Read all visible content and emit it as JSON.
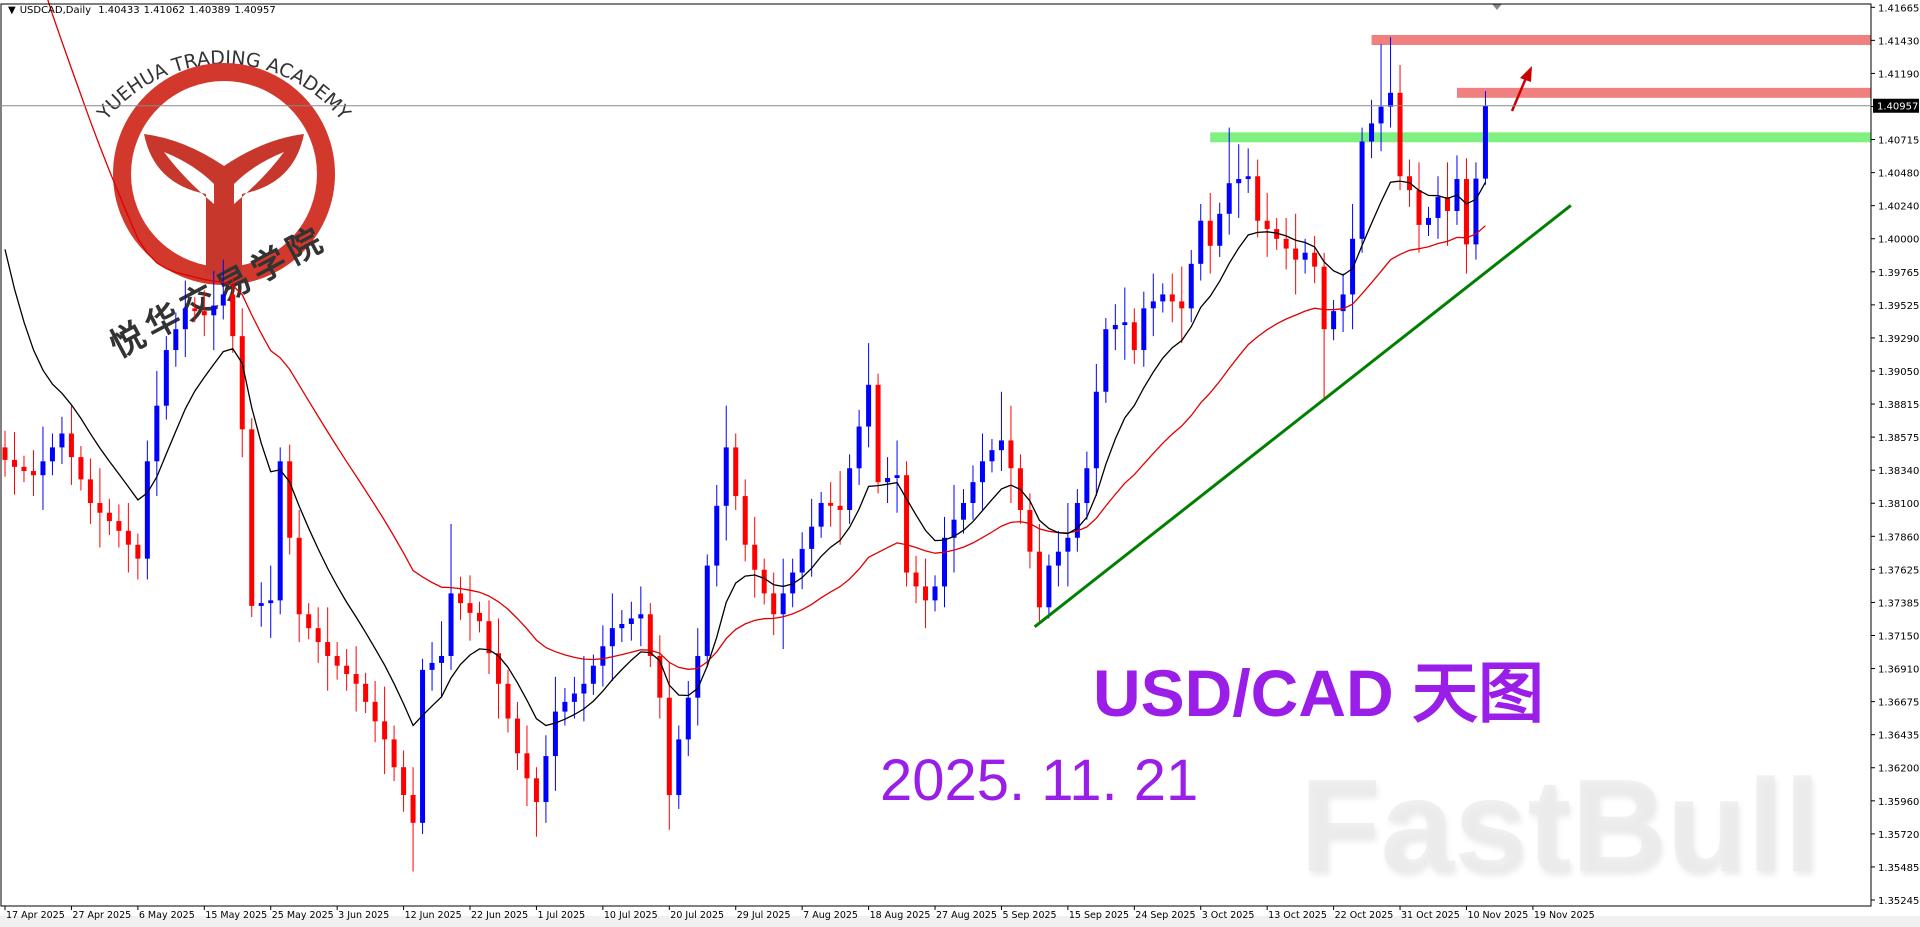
{
  "header": {
    "symbol": "USDCAD,Daily",
    "open": "1.40433",
    "high": "1.41062",
    "low": "1.40389",
    "close": "1.40957"
  },
  "overlay": {
    "title": "USD/CAD 天图",
    "date": "2025. 11. 21",
    "watermark": "FastBull",
    "logo_text": "YUEHUA TRADING ACADEMY",
    "logo_cn": "悦华交易学院",
    "title_color": "#9a1ee8"
  },
  "chart_data": {
    "type": "candlestick",
    "symbol": "USDCAD",
    "timeframe": "Daily",
    "ylim": [
      1.35245,
      1.41665
    ],
    "y_ticks": [
      "1.41665",
      "1.41430",
      "1.41190",
      "1.40957",
      "1.40715",
      "1.40480",
      "1.40240",
      "1.40000",
      "1.39765",
      "1.39525",
      "1.39290",
      "1.39050",
      "1.38815",
      "1.38575",
      "1.38340",
      "1.38100",
      "1.37860",
      "1.37625",
      "1.37385",
      "1.37150",
      "1.36910",
      "1.36675",
      "1.36435",
      "1.36200",
      "1.35960",
      "1.35720",
      "1.35485",
      "1.35245"
    ],
    "current_price": "1.40957",
    "x_ticks": [
      "17 Apr 2025",
      "27 Apr 2025",
      "6 May 2025",
      "15 May 2025",
      "25 May 2025",
      "3 Jun 2025",
      "12 Jun 2025",
      "22 Jun 2025",
      "1 Jul 2025",
      "10 Jul 2025",
      "20 Jul 2025",
      "29 Jul 2025",
      "7 Aug 2025",
      "18 Aug 2025",
      "27 Aug 2025",
      "5 Sep 2025",
      "15 Sep 2025",
      "24 Sep 2025",
      "3 Oct 2025",
      "13 Oct 2025",
      "22 Oct 2025",
      "31 Oct 2025",
      "10 Nov 2025",
      "19 Nov 2025"
    ],
    "colors": {
      "bull": "#0000ff",
      "bear": "#ff0000",
      "ma_fast": "#000000",
      "ma_slow": "#e00000"
    },
    "zones": [
      {
        "price": 1.4143,
        "color": "#f08080"
      },
      {
        "price": 1.4105,
        "color": "#f08080"
      },
      {
        "price": 1.4073,
        "color": "#80f080"
      }
    ],
    "trendline_color": "#008000",
    "candles": [
      [
        1.385,
        1.3862,
        1.3829,
        1.3841
      ],
      [
        1.3841,
        1.3861,
        1.3816,
        1.3836
      ],
      [
        1.3836,
        1.3844,
        1.3825,
        1.3833
      ],
      [
        1.3833,
        1.3848,
        1.3815,
        1.383
      ],
      [
        1.383,
        1.3865,
        1.3805,
        1.384
      ],
      [
        1.384,
        1.386,
        1.383,
        1.385
      ],
      [
        1.385,
        1.3872,
        1.3838,
        1.386
      ],
      [
        1.386,
        1.388,
        1.3823,
        1.3843
      ],
      [
        1.3843,
        1.3851,
        1.3819,
        1.3827
      ],
      [
        1.3827,
        1.3842,
        1.3795,
        1.381
      ],
      [
        1.381,
        1.3835,
        1.3778,
        1.3803
      ],
      [
        1.3803,
        1.3813,
        1.3787,
        1.3797
      ],
      [
        1.3797,
        1.3809,
        1.3778,
        1.379
      ],
      [
        1.379,
        1.381,
        1.376,
        1.378
      ],
      [
        1.378,
        1.3788,
        1.3755,
        1.377
      ],
      [
        1.377,
        1.3855,
        1.3755,
        1.384
      ],
      [
        1.384,
        1.3905,
        1.3815,
        1.388
      ],
      [
        1.388,
        1.393,
        1.387,
        1.392
      ],
      [
        1.392,
        1.3947,
        1.3908,
        1.3935
      ],
      [
        1.3935,
        1.397,
        1.3915,
        1.395
      ],
      [
        1.395,
        1.3958,
        1.394,
        1.3948
      ],
      [
        1.3948,
        1.3963,
        1.393,
        1.3945
      ],
      [
        1.3945,
        1.3977,
        1.392,
        1.3952
      ],
      [
        1.3952,
        1.3985,
        1.3942,
        1.396
      ],
      [
        1.396,
        1.3972,
        1.3918,
        1.393
      ],
      [
        1.393,
        1.395,
        1.3843,
        1.3863
      ],
      [
        1.3863,
        1.3871,
        1.3728,
        1.3736
      ],
      [
        1.3736,
        1.3753,
        1.3721,
        1.3738
      ],
      [
        1.3738,
        1.3765,
        1.3713,
        1.374
      ],
      [
        1.374,
        1.385,
        1.373,
        1.384
      ],
      [
        1.384,
        1.3852,
        1.3773,
        1.3785
      ],
      [
        1.3785,
        1.3805,
        1.371,
        1.373
      ],
      [
        1.373,
        1.3738,
        1.3712,
        1.372
      ],
      [
        1.372,
        1.3735,
        1.3695,
        1.371
      ],
      [
        1.371,
        1.3735,
        1.3675,
        1.37
      ],
      [
        1.37,
        1.371,
        1.3683,
        1.3693
      ],
      [
        1.3693,
        1.3705,
        1.3675,
        1.3687
      ],
      [
        1.3687,
        1.3707,
        1.366,
        1.368
      ],
      [
        1.368,
        1.3688,
        1.3659,
        1.3667
      ],
      [
        1.3667,
        1.3682,
        1.3638,
        1.3653
      ],
      [
        1.3653,
        1.3678,
        1.3615,
        1.364
      ],
      [
        1.364,
        1.365,
        1.361,
        1.362
      ],
      [
        1.362,
        1.3632,
        1.3588,
        1.36
      ],
      [
        1.36,
        1.362,
        1.3545,
        1.358
      ],
      [
        1.358,
        1.3698,
        1.3572,
        1.369
      ],
      [
        1.369,
        1.371,
        1.3675,
        1.3695
      ],
      [
        1.3695,
        1.3725,
        1.367,
        1.37
      ],
      [
        1.37,
        1.3795,
        1.369,
        1.3745
      ],
      [
        1.3745,
        1.3757,
        1.3726,
        1.3738
      ],
      [
        1.3738,
        1.3758,
        1.3711,
        1.3731
      ],
      [
        1.3731,
        1.3739,
        1.3717,
        1.3725
      ],
      [
        1.3725,
        1.374,
        1.3687,
        1.3702
      ],
      [
        1.3702,
        1.3727,
        1.3655,
        1.368
      ],
      [
        1.368,
        1.369,
        1.3645,
        1.3655
      ],
      [
        1.3655,
        1.3667,
        1.3618,
        1.363
      ],
      [
        1.363,
        1.365,
        1.3592,
        1.3612
      ],
      [
        1.3612,
        1.362,
        1.357,
        1.3595
      ],
      [
        1.3595,
        1.3643,
        1.358,
        1.3628
      ],
      [
        1.3628,
        1.3685,
        1.3603,
        1.366
      ],
      [
        1.366,
        1.3677,
        1.365,
        1.3667
      ],
      [
        1.3667,
        1.3685,
        1.3655,
        1.3673
      ],
      [
        1.3673,
        1.37,
        1.3653,
        1.368
      ],
      [
        1.368,
        1.3701,
        1.3672,
        1.3693
      ],
      [
        1.3693,
        1.3722,
        1.3678,
        1.3707
      ],
      [
        1.3707,
        1.3745,
        1.3682,
        1.372
      ],
      [
        1.372,
        1.3733,
        1.371,
        1.3723
      ],
      [
        1.3723,
        1.3739,
        1.3711,
        1.3727
      ],
      [
        1.3727,
        1.375,
        1.3707,
        1.373
      ],
      [
        1.373,
        1.3738,
        1.3692,
        1.37
      ],
      [
        1.37,
        1.3715,
        1.3655,
        1.367
      ],
      [
        1.367,
        1.3695,
        1.3575,
        1.36
      ],
      [
        1.36,
        1.365,
        1.359,
        1.364
      ],
      [
        1.364,
        1.3682,
        1.3628,
        1.367
      ],
      [
        1.367,
        1.372,
        1.365,
        1.37
      ],
      [
        1.37,
        1.3773,
        1.3692,
        1.3765
      ],
      [
        1.3765,
        1.3823,
        1.375,
        1.3808
      ],
      [
        1.3808,
        1.388,
        1.3783,
        1.385
      ],
      [
        1.385,
        1.386,
        1.3805,
        1.3815
      ],
      [
        1.3815,
        1.3827,
        1.3768,
        1.378
      ],
      [
        1.378,
        1.38,
        1.3742,
        1.3762
      ],
      [
        1.3762,
        1.377,
        1.3737,
        1.3745
      ],
      [
        1.3745,
        1.376,
        1.3715,
        1.373
      ],
      [
        1.373,
        1.377,
        1.3705,
        1.3745
      ],
      [
        1.3745,
        1.377,
        1.3735,
        1.376
      ],
      [
        1.376,
        1.3789,
        1.3748,
        1.3777
      ],
      [
        1.3777,
        1.3813,
        1.3757,
        1.3793
      ],
      [
        1.3793,
        1.3818,
        1.3785,
        1.381
      ],
      [
        1.381,
        1.3825,
        1.3793,
        1.3808
      ],
      [
        1.3808,
        1.3833,
        1.378,
        1.3805
      ],
      [
        1.3805,
        1.3845,
        1.3795,
        1.3835
      ],
      [
        1.3835,
        1.3877,
        1.3823,
        1.3865
      ],
      [
        1.3865,
        1.3925,
        1.385,
        1.3895
      ],
      [
        1.3895,
        1.3903,
        1.3817,
        1.3825
      ],
      [
        1.3825,
        1.3843,
        1.381,
        1.3828
      ],
      [
        1.3828,
        1.3855,
        1.3803,
        1.383
      ],
      [
        1.383,
        1.384,
        1.375,
        1.376
      ],
      [
        1.376,
        1.3772,
        1.3738,
        1.375
      ],
      [
        1.375,
        1.377,
        1.372,
        1.374
      ],
      [
        1.374,
        1.3758,
        1.3732,
        1.375
      ],
      [
        1.375,
        1.38,
        1.3735,
        1.3785
      ],
      [
        1.3785,
        1.3823,
        1.376,
        1.3798
      ],
      [
        1.3798,
        1.382,
        1.3788,
        1.381
      ],
      [
        1.381,
        1.3837,
        1.3798,
        1.3825
      ],
      [
        1.3825,
        1.386,
        1.3805,
        1.384
      ],
      [
        1.384,
        1.3856,
        1.3832,
        1.3848
      ],
      [
        1.3848,
        1.389,
        1.3833,
        1.3855
      ],
      [
        1.3855,
        1.388,
        1.381,
        1.3835
      ],
      [
        1.3835,
        1.3845,
        1.3795,
        1.3805
      ],
      [
        1.3805,
        1.3817,
        1.3763,
        1.3775
      ],
      [
        1.3775,
        1.3795,
        1.3725,
        1.3735
      ],
      [
        1.3735,
        1.3773,
        1.3727,
        1.3765
      ],
      [
        1.3765,
        1.379,
        1.375,
        1.3775
      ],
      [
        1.3775,
        1.381,
        1.375,
        1.3785
      ],
      [
        1.3785,
        1.382,
        1.3775,
        1.381
      ],
      [
        1.381,
        1.3847,
        1.3798,
        1.3835
      ],
      [
        1.3835,
        1.391,
        1.3815,
        1.389
      ],
      [
        1.389,
        1.3943,
        1.3882,
        1.3935
      ],
      [
        1.3935,
        1.3953,
        1.392,
        1.3938
      ],
      [
        1.3938,
        1.3965,
        1.3913,
        1.394
      ],
      [
        1.394,
        1.395,
        1.391,
        1.392
      ],
      [
        1.392,
        1.3962,
        1.3908,
        1.395
      ],
      [
        1.395,
        1.3975,
        1.393,
        1.3955
      ],
      [
        1.3955,
        1.3968,
        1.3947,
        1.396
      ],
      [
        1.396,
        1.3975,
        1.394,
        1.3955
      ],
      [
        1.3955,
        1.398,
        1.3925,
        1.395
      ],
      [
        1.395,
        1.3992,
        1.394,
        1.3982
      ],
      [
        1.3982,
        1.4025,
        1.397,
        1.4013
      ],
      [
        1.4013,
        1.4033,
        1.3975,
        1.3995
      ],
      [
        1.3995,
        1.4026,
        1.3987,
        1.4018
      ],
      [
        1.4018,
        1.408,
        1.4003,
        1.404
      ],
      [
        1.404,
        1.4068,
        1.4015,
        1.4043
      ],
      [
        1.4043,
        1.4065,
        1.4033,
        1.4045
      ],
      [
        1.4045,
        1.4057,
        1.4001,
        1.4013
      ],
      [
        1.4013,
        1.4033,
        1.3987,
        1.4007
      ],
      [
        1.4007,
        1.4015,
        1.3992,
        1.4
      ],
      [
        1.4,
        1.4015,
        1.3978,
        1.3993
      ],
      [
        1.3993,
        1.4018,
        1.396,
        1.3985
      ],
      [
        1.3985,
        1.4,
        1.3975,
        1.399
      ],
      [
        1.399,
        1.4002,
        1.3968,
        1.398
      ],
      [
        1.398,
        1.399,
        1.3885,
        1.3935
      ],
      [
        1.3935,
        1.3956,
        1.3927,
        1.3948
      ],
      [
        1.3948,
        1.3975,
        1.3933,
        1.396
      ],
      [
        1.396,
        1.4025,
        1.3935,
        1.4
      ],
      [
        1.4,
        1.408,
        1.399,
        1.407
      ],
      [
        1.407,
        1.41,
        1.4058,
        1.4083
      ],
      [
        1.4083,
        1.414,
        1.4063,
        1.4095
      ],
      [
        1.4095,
        1.4145,
        1.408,
        1.4105
      ],
      [
        1.4105,
        1.4125,
        1.4035,
        1.4045
      ],
      [
        1.4045,
        1.4057,
        1.4023,
        1.4035
      ],
      [
        1.4035,
        1.4055,
        1.399,
        1.401
      ],
      [
        1.401,
        1.4023,
        1.4002,
        1.4015
      ],
      [
        1.4015,
        1.4045,
        1.4,
        1.403
      ],
      [
        1.403,
        1.4055,
        1.3995,
        1.402
      ],
      [
        1.402,
        1.406,
        1.401,
        1.4043
      ],
      [
        1.4043,
        1.4058,
        1.3975,
        1.3996
      ],
      [
        1.3996,
        1.4055,
        1.3985,
        1.40433
      ],
      [
        1.40433,
        1.41062,
        1.40389,
        1.40957
      ]
    ]
  }
}
